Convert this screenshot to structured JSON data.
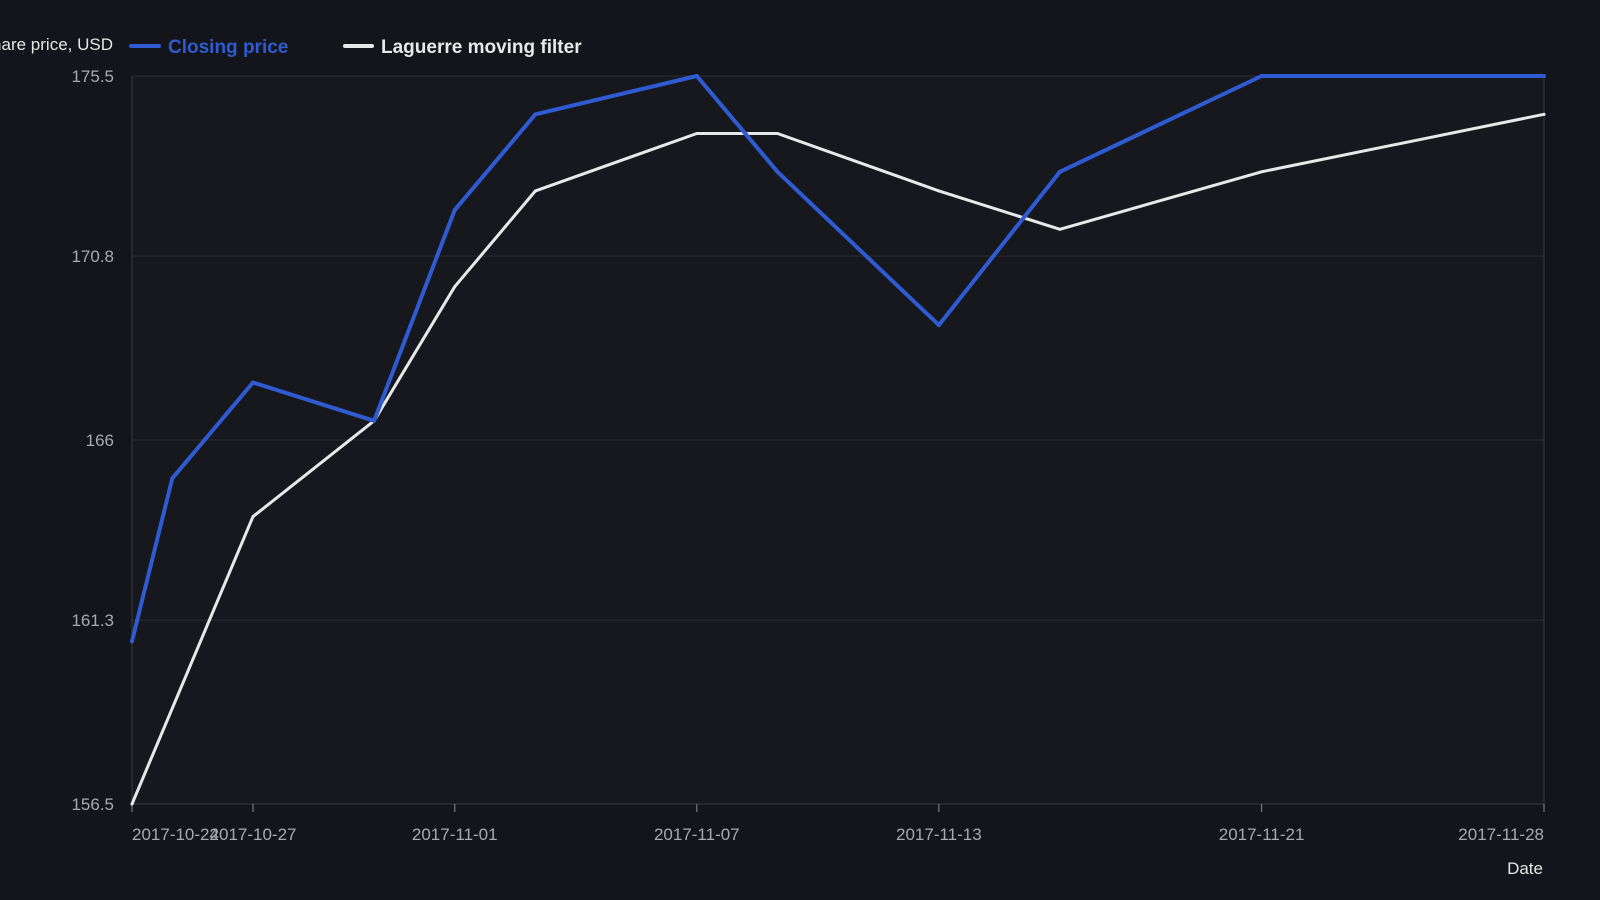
{
  "chart_data": {
    "type": "line",
    "title": "",
    "ylabel": "Share price, USD",
    "xlabel": "Date",
    "ylim": [
      156.5,
      175.5
    ],
    "yticks": [
      "156.5",
      "161.3",
      "166",
      "170.8",
      "175.5"
    ],
    "xlim": [
      "2017-10-24",
      "2017-11-28"
    ],
    "xticks": [
      "2017-10-24",
      "2017-10-27",
      "2017-11-01",
      "2017-11-07",
      "2017-11-13",
      "2017-11-21",
      "2017-11-28"
    ],
    "grid": true,
    "legend_position": "top-left",
    "series": [
      {
        "name": "Closing price",
        "color": "#2e5bd1",
        "points": [
          {
            "x": "2017-10-24",
            "y": 160.75
          },
          {
            "x": "2017-10-25",
            "y": 165.0
          },
          {
            "x": "2017-10-27",
            "y": 167.5
          },
          {
            "x": "2017-10-30",
            "y": 166.5
          },
          {
            "x": "2017-11-01",
            "y": 172.0
          },
          {
            "x": "2017-11-03",
            "y": 174.5
          },
          {
            "x": "2017-11-07",
            "y": 175.5
          },
          {
            "x": "2017-11-09",
            "y": 173.0
          },
          {
            "x": "2017-11-13",
            "y": 169.0
          },
          {
            "x": "2017-11-16",
            "y": 173.0
          },
          {
            "x": "2017-11-21",
            "y": 175.5
          },
          {
            "x": "2017-11-28",
            "y": 175.5
          }
        ]
      },
      {
        "name": "Laguerre moving filter",
        "color": "#e8e8e8",
        "points": [
          {
            "x": "2017-10-24",
            "y": 156.5
          },
          {
            "x": "2017-10-27",
            "y": 164.0
          },
          {
            "x": "2017-10-30",
            "y": 166.5
          },
          {
            "x": "2017-11-01",
            "y": 170.0
          },
          {
            "x": "2017-11-03",
            "y": 172.5
          },
          {
            "x": "2017-11-07",
            "y": 174.0
          },
          {
            "x": "2017-11-09",
            "y": 174.0
          },
          {
            "x": "2017-11-13",
            "y": 172.5
          },
          {
            "x": "2017-11-16",
            "y": 171.5
          },
          {
            "x": "2017-11-21",
            "y": 173.0
          },
          {
            "x": "2017-11-28",
            "y": 174.5
          }
        ]
      }
    ]
  }
}
